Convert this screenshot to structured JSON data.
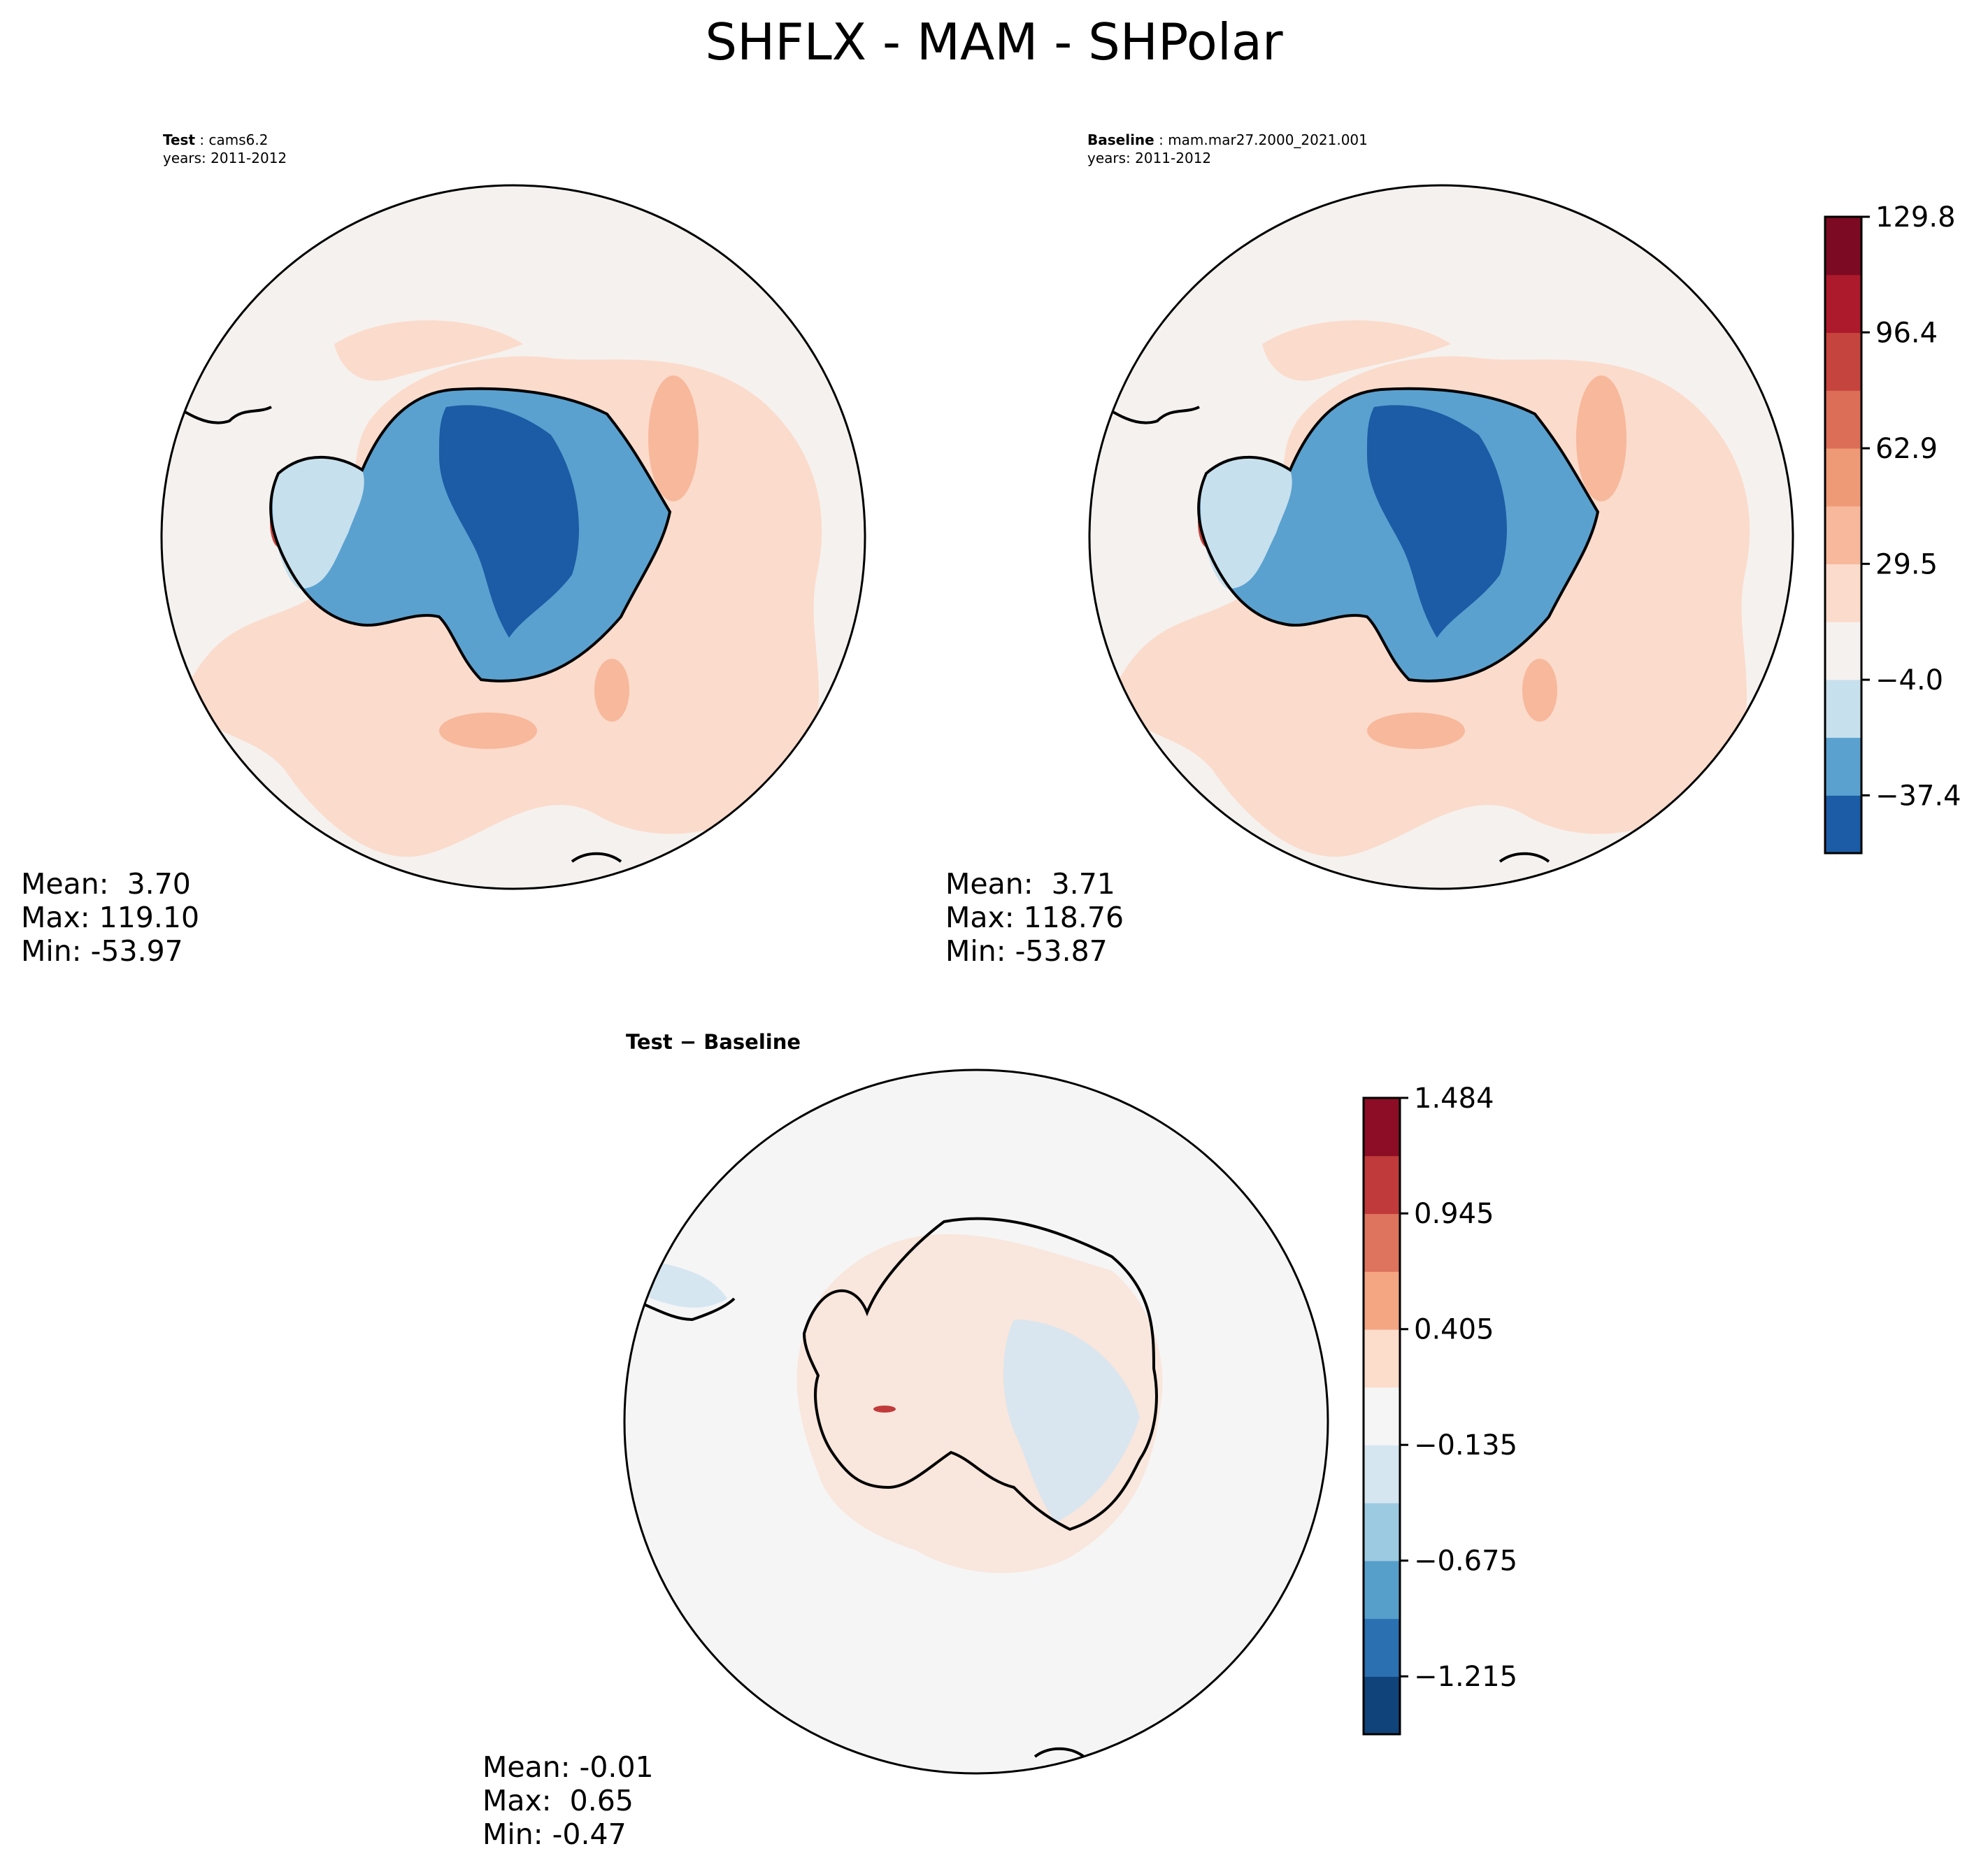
{
  "chart_data": [
    {
      "type": "map",
      "title": "SHFLX - MAM - SHPolar",
      "panel": "test",
      "label_bold": "Test",
      "label": "cams6.2",
      "years": "years: 2011-2012",
      "stats": {
        "mean": "Mean:  3.70",
        "max": "Max: 119.10",
        "min": "Min: -53.97"
      }
    },
    {
      "type": "map",
      "panel": "baseline",
      "label_bold": "Baseline",
      "label": "mam.mar27.2000_2021.001",
      "years": "years: 2011-2012",
      "stats": {
        "mean": "Mean:  3.71",
        "max": "Max: 118.76",
        "min": "Min: -53.87"
      },
      "colorbar": {
        "ticks": [
          "129.8",
          "96.4",
          "62.9",
          "29.5",
          "−4.0",
          "−37.4"
        ],
        "tick_values": [
          129.8,
          96.4,
          62.9,
          29.5,
          -4.0,
          -37.4
        ],
        "range": [
          -54.1,
          129.8
        ],
        "levels": 11,
        "colors": [
          "#1c5ba5",
          "#5aa1cf",
          "#c7e0ed",
          "#f5f1ee",
          "#fbdbcb",
          "#f7b89c",
          "#ef9a76",
          "#dc6e58",
          "#c6443e",
          "#ad1a2c",
          "#7c0a22"
        ]
      }
    },
    {
      "type": "map",
      "panel": "difference",
      "label_bold": "Test − Baseline",
      "stats": {
        "mean": "Mean: -0.01",
        "max": "Max:  0.65",
        "min": "Min: -0.47"
      },
      "colorbar": {
        "ticks": [
          "1.484",
          "0.945",
          "0.405",
          "−0.135",
          "−0.675",
          "−1.215"
        ],
        "tick_values": [
          1.484,
          0.945,
          0.405,
          -0.135,
          -0.675,
          -1.215
        ],
        "range": [
          -1.485,
          1.484
        ],
        "levels": 11,
        "colors": [
          "#0f437a",
          "#2b70b1",
          "#569fcb",
          "#9ccae1",
          "#d5e6f1",
          "#f5f5f5",
          "#fcdccb",
          "#f4a582",
          "#de735e",
          "#c13a3b",
          "#8c0d25"
        ]
      }
    }
  ]
}
